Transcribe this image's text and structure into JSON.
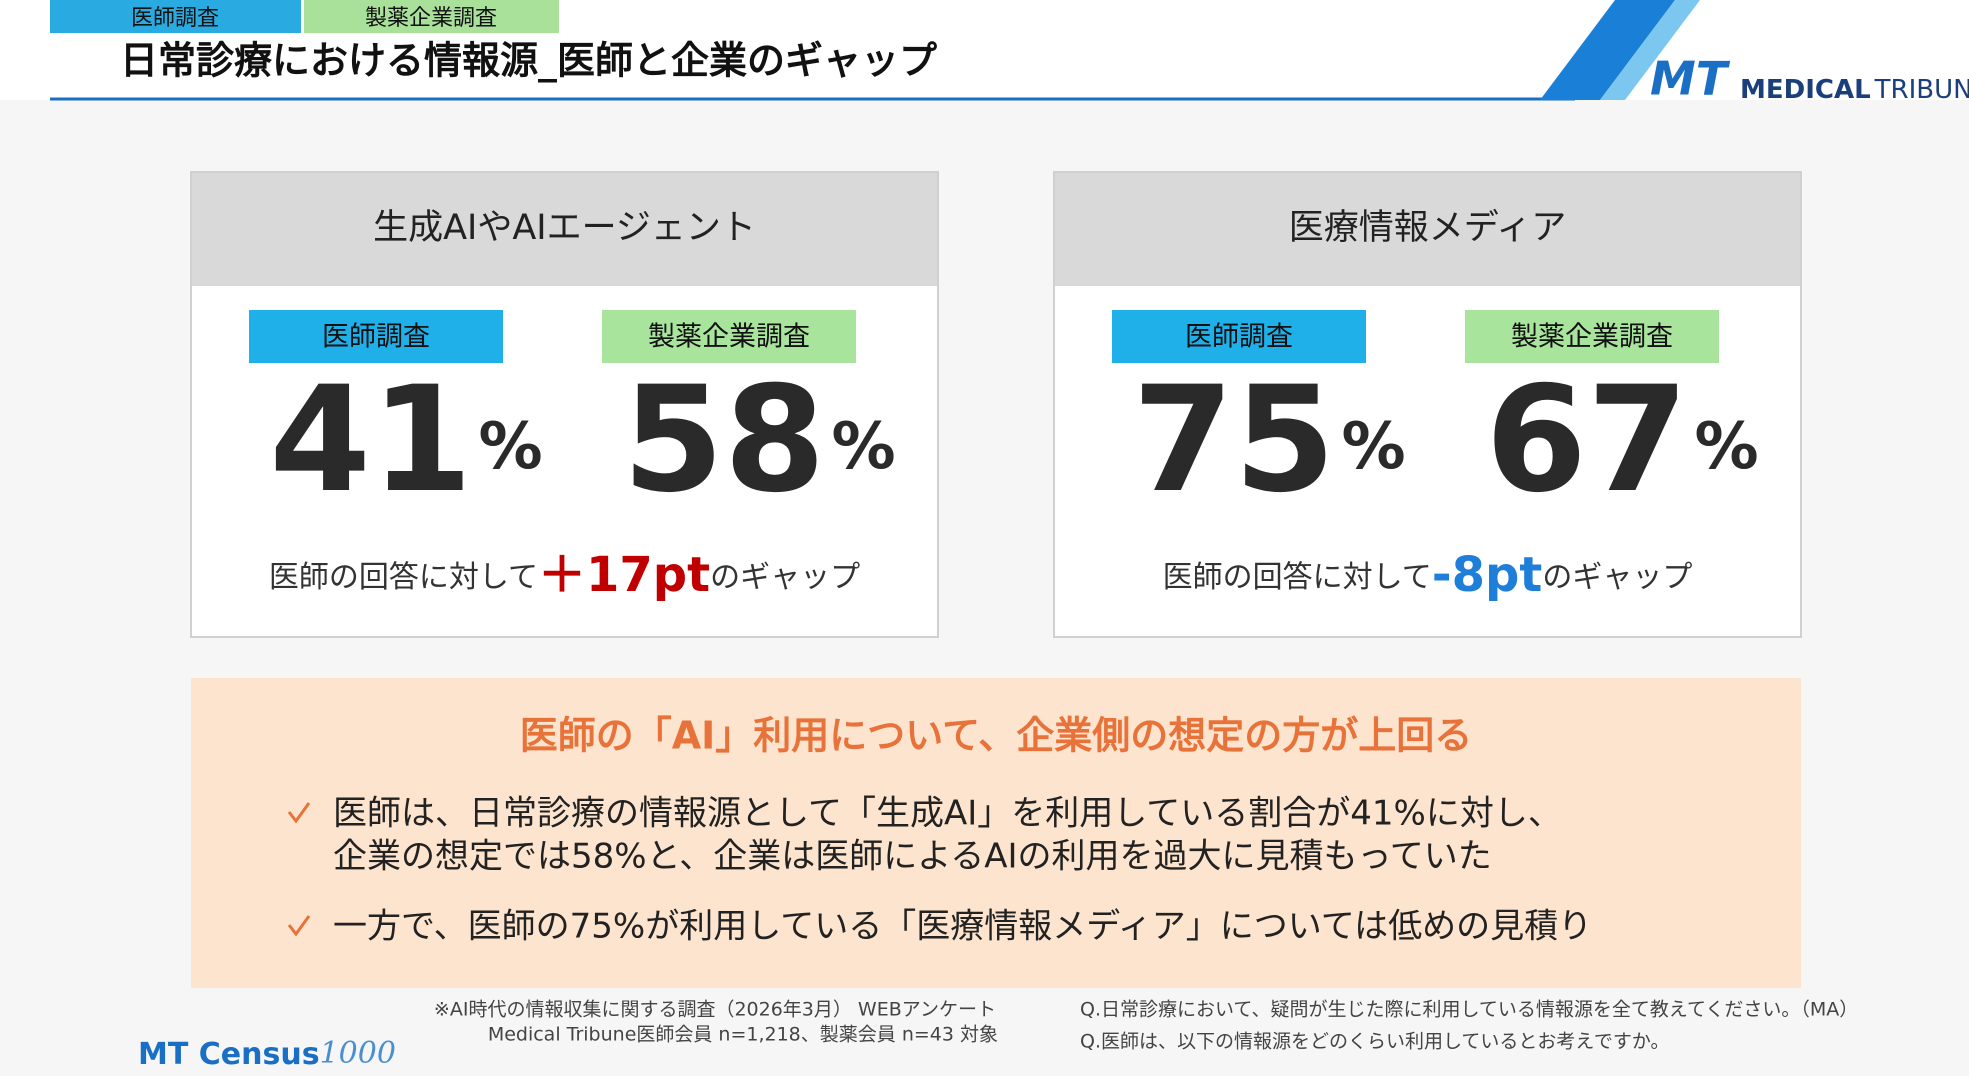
{
  "header": {
    "tags": [
      "医師調査",
      "製薬企業調査"
    ],
    "title": "日常診療における情報源_医師と企業のギャップ"
  },
  "logo": {
    "mark": "MT",
    "text_bold": "MEDICAL",
    "text_light": "TRIBUNE"
  },
  "panels": [
    {
      "title": "生成AIやAIエージェント",
      "items": [
        {
          "label": "医師調査",
          "value": 41,
          "unit": "%"
        },
        {
          "label": "製薬企業調査",
          "value": 58,
          "unit": "%"
        }
      ],
      "gap": {
        "prefix": "医師の回答に対して",
        "value": "＋17pt",
        "suffix": "のギャップ",
        "color": "#c00000"
      }
    },
    {
      "title": "医療情報メディア",
      "items": [
        {
          "label": "医師調査",
          "value": 75,
          "unit": "%"
        },
        {
          "label": "製薬企業調査",
          "value": 67,
          "unit": "%"
        }
      ],
      "gap": {
        "prefix": "医師の回答に対して",
        "value": "-8pt",
        "suffix": "のギャップ",
        "color": "#1f7fd8"
      }
    }
  ],
  "summary": {
    "heading": "医師の「AI」利用について、企業側の想定の方が上回る",
    "bullets": [
      [
        "医師は、日常診療の情報源として「生成AI」を利用している割合が41%に対し、",
        "企業の想定では58%と、企業は医師によるAIの利用を過大に見積もっていた"
      ],
      [
        "一方で、医師の75%が利用している「医療情報メディア」については低めの見積り"
      ]
    ]
  },
  "footnotes": {
    "left": [
      "※AI時代の情報収集に関する調査（2026年3月） WEBアンケート",
      "Medical Tribune医師会員 n=1,218、製薬会員 n=43 対象"
    ],
    "right": [
      "Q.日常診療において、疑問が生じた際に利用している情報源を全て教えてください。（MA）",
      "Q.医師は、以下の情報源をどのくらい利用しているとお考えですか。"
    ]
  },
  "footer_logo": {
    "name": "MT Census",
    "number": "1000"
  }
}
